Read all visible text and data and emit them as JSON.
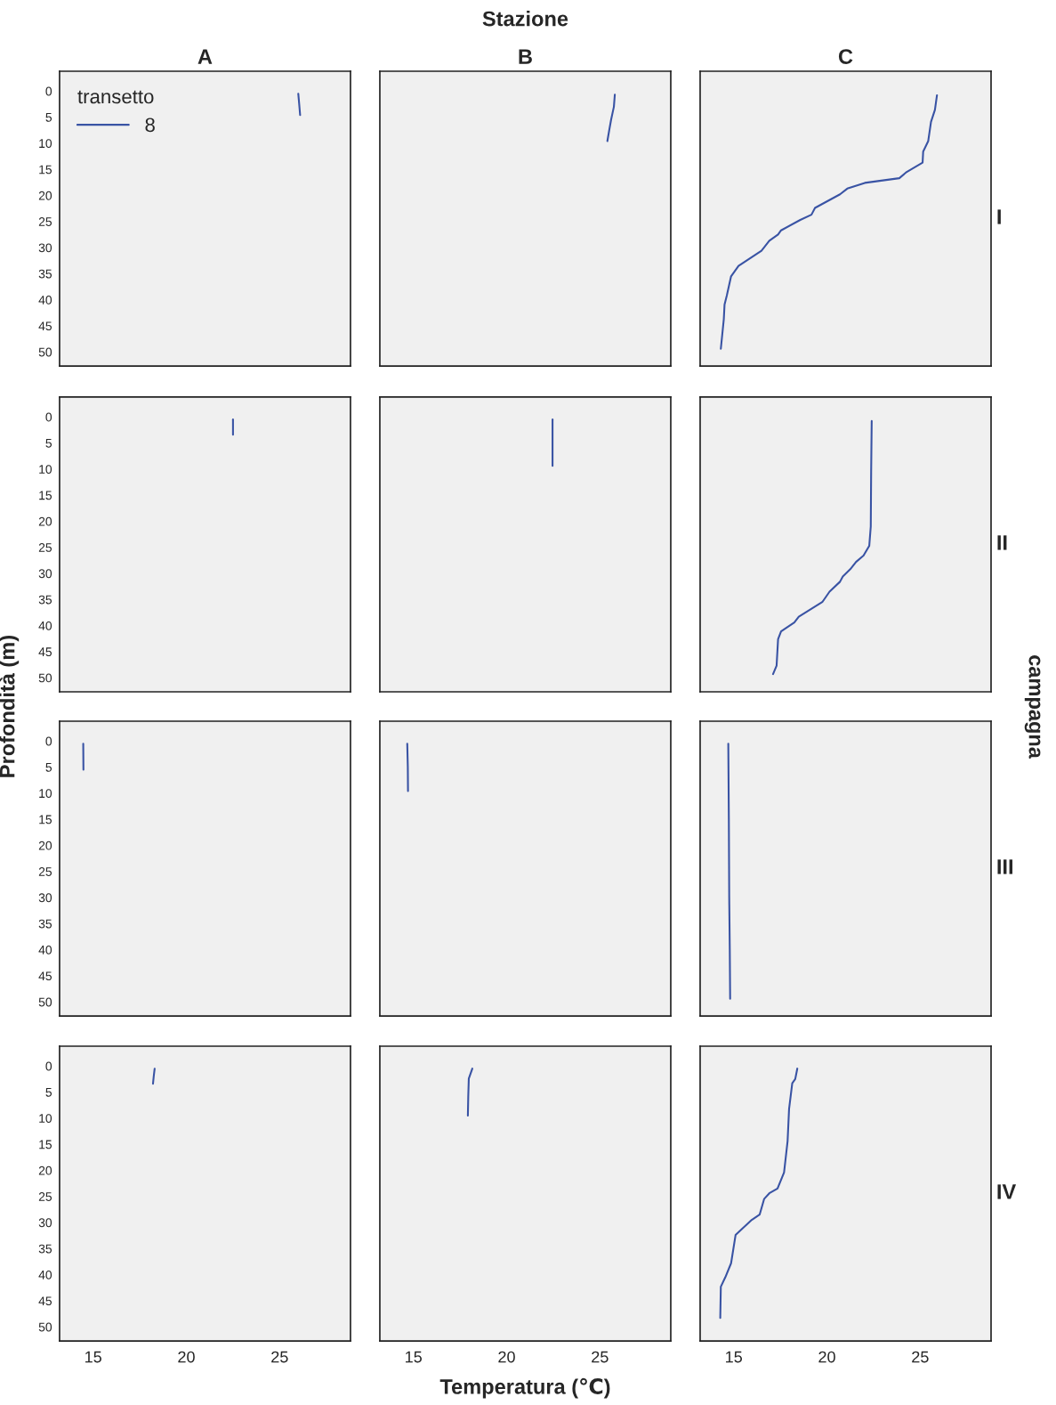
{
  "chart_data": [
    {
      "type": "line",
      "title": "A",
      "xlim": [
        13.2,
        28.8
      ],
      "ylim": [
        52.7,
        -3.8
      ],
      "xticks": [
        15,
        20,
        25
      ],
      "yticks": [
        0,
        5,
        10,
        15,
        20,
        25,
        30,
        35,
        40,
        45,
        50
      ],
      "tick_labels": "y",
      "legend": "top left",
      "legend_title": "transetto",
      "series": [
        {
          "name": "8",
          "color": "#3953a4",
          "x": [
            26.0,
            26.05,
            26.1
          ],
          "values": [
            0.5,
            2.5,
            4.6
          ]
        }
      ]
    },
    {
      "type": "line",
      "title": "B",
      "annotations": [
        "Stazione"
      ],
      "xlim": [
        13.2,
        28.8
      ],
      "ylim": [
        52.7,
        -3.8
      ],
      "xticks": [
        15,
        20,
        25
      ],
      "yticks": [
        0,
        5,
        10,
        15,
        20,
        25,
        30,
        35,
        40,
        45,
        50
      ],
      "tick_labels": false,
      "series": [
        {
          "color": "#3953a4",
          "x": [
            25.8,
            25.75,
            25.6,
            25.5,
            25.4
          ],
          "values": [
            0.7,
            3,
            5.5,
            7.5,
            9.6
          ]
        }
      ]
    },
    {
      "type": "line",
      "title": "C",
      "annotations": [
        "I"
      ],
      "xlim": [
        13.2,
        28.8
      ],
      "ylim": [
        52.7,
        -3.8
      ],
      "xticks": [
        15,
        20,
        25
      ],
      "yticks": [
        0,
        5,
        10,
        15,
        20,
        25,
        30,
        35,
        40,
        45,
        50
      ],
      "tick_labels": false,
      "series": [
        {
          "color": "#3953a4",
          "x": [
            25.9,
            25.79,
            25.58,
            25.43,
            25.16,
            25.13,
            24.24,
            23.88,
            22.03,
            21.09,
            20.7,
            19.36,
            19.17,
            18.57,
            17.54,
            17.38,
            16.91,
            16.49,
            15.26,
            14.86,
            14.63,
            14.51,
            14.47,
            14.31
          ],
          "values": [
            0.8,
            3.6,
            5.9,
            9.6,
            11.6,
            13.7,
            15.6,
            16.7,
            17.6,
            18.7,
            19.8,
            22.4,
            23.7,
            24.7,
            26.7,
            27.5,
            28.7,
            30.6,
            33.5,
            35.5,
            39.2,
            40.9,
            43.7,
            49.4
          ]
        }
      ]
    },
    {
      "type": "line",
      "ylabel": "Profondità (m)",
      "xlim": [
        13.2,
        28.8
      ],
      "ylim": [
        52.7,
        -3.8
      ],
      "xticks": [
        15,
        20,
        25
      ],
      "yticks": [
        0,
        5,
        10,
        15,
        20,
        25,
        30,
        35,
        40,
        45,
        50
      ],
      "tick_labels": "y",
      "series": [
        {
          "color": "#3953a4",
          "x": [
            22.5,
            22.5
          ],
          "values": [
            0.5,
            3.4
          ]
        }
      ]
    },
    {
      "type": "line",
      "xlim": [
        13.2,
        28.8
      ],
      "ylim": [
        52.7,
        -3.8
      ],
      "xticks": [
        15,
        20,
        25
      ],
      "yticks": [
        0,
        5,
        10,
        15,
        20,
        25,
        30,
        35,
        40,
        45,
        50
      ],
      "tick_labels": false,
      "series": [
        {
          "color": "#3953a4",
          "x": [
            22.46,
            22.46,
            22.46
          ],
          "values": [
            0.5,
            5,
            9.4
          ]
        }
      ]
    },
    {
      "type": "line",
      "annotations": [
        "II",
        "campagna"
      ],
      "xlim": [
        13.2,
        28.8
      ],
      "ylim": [
        52.7,
        -3.8
      ],
      "xticks": [
        15,
        20,
        25
      ],
      "yticks": [
        0,
        5,
        10,
        15,
        20,
        25,
        30,
        35,
        40,
        45,
        50
      ],
      "tick_labels": false,
      "series": [
        {
          "color": "#3953a4",
          "x": [
            22.4,
            22.37,
            22.35,
            22.27,
            21.96,
            21.56,
            21.25,
            20.85,
            20.7,
            20.14,
            19.75,
            18.49,
            18.25,
            17.54,
            17.38,
            17.3,
            17.11
          ],
          "values": [
            0.8,
            10.7,
            21.0,
            24.7,
            26.6,
            27.8,
            29.2,
            30.6,
            31.6,
            33.5,
            35.5,
            38.3,
            39.4,
            41.1,
            42.6,
            47.7,
            49.3
          ]
        }
      ]
    },
    {
      "type": "line",
      "xlim": [
        13.2,
        28.8
      ],
      "ylim": [
        52.7,
        -3.8
      ],
      "xticks": [
        15,
        20,
        25
      ],
      "yticks": [
        0,
        5,
        10,
        15,
        20,
        25,
        30,
        35,
        40,
        45,
        50
      ],
      "tick_labels": "y",
      "series": [
        {
          "color": "#3953a4",
          "x": [
            14.47,
            14.48
          ],
          "values": [
            0.5,
            5.5
          ]
        }
      ]
    },
    {
      "type": "line",
      "xlim": [
        13.2,
        28.8
      ],
      "ylim": [
        52.7,
        -3.8
      ],
      "xticks": [
        15,
        20,
        25
      ],
      "yticks": [
        0,
        5,
        10,
        15,
        20,
        25,
        30,
        35,
        40,
        45,
        50
      ],
      "tick_labels": false,
      "series": [
        {
          "color": "#3953a4",
          "x": [
            14.67,
            14.7,
            14.71
          ],
          "values": [
            0.5,
            5,
            9.6
          ]
        }
      ]
    },
    {
      "type": "line",
      "annotations": [
        "III"
      ],
      "xlim": [
        13.2,
        28.8
      ],
      "ylim": [
        52.7,
        -3.8
      ],
      "xticks": [
        15,
        20,
        25
      ],
      "yticks": [
        0,
        5,
        10,
        15,
        20,
        25,
        30,
        35,
        40,
        45,
        50
      ],
      "tick_labels": false,
      "series": [
        {
          "color": "#3953a4",
          "x": [
            14.71,
            14.74,
            14.76,
            14.79,
            14.81
          ],
          "values": [
            0.5,
            15,
            30,
            40,
            49.4
          ]
        }
      ]
    },
    {
      "type": "line",
      "xlim": [
        13.2,
        28.8
      ],
      "ylim": [
        52.7,
        -3.8
      ],
      "xticks": [
        15,
        20,
        25
      ],
      "yticks": [
        0,
        5,
        10,
        15,
        20,
        25,
        30,
        35,
        40,
        45,
        50
      ],
      "series": [
        {
          "color": "#3953a4",
          "x": [
            18.3,
            18.25,
            18.21
          ],
          "values": [
            0.5,
            2,
            3.4
          ]
        }
      ]
    },
    {
      "type": "line",
      "xlabel": "Temperatura (℃)",
      "xlim": [
        13.2,
        28.8
      ],
      "ylim": [
        52.7,
        -3.8
      ],
      "xticks": [
        15,
        20,
        25
      ],
      "yticks": [
        0,
        5,
        10,
        15,
        20,
        25,
        30,
        35,
        40,
        45,
        50
      ],
      "tick_labels": "x",
      "series": [
        {
          "color": "#3953a4",
          "x": [
            18.16,
            17.97,
            17.94,
            17.92
          ],
          "values": [
            0.5,
            2.4,
            6,
            9.5
          ]
        }
      ]
    },
    {
      "type": "line",
      "annotations": [
        "IV"
      ],
      "xlim": [
        13.2,
        28.8
      ],
      "ylim": [
        52.7,
        -3.8
      ],
      "xticks": [
        15,
        20,
        25
      ],
      "yticks": [
        0,
        5,
        10,
        15,
        20,
        25,
        30,
        35,
        40,
        45,
        50
      ],
      "tick_labels": "x",
      "series": [
        {
          "color": "#3953a4",
          "x": [
            18.41,
            18.3,
            18.14,
            17.97,
            17.89,
            17.7,
            17.35,
            16.91,
            16.63,
            16.39,
            15.97,
            15.1,
            14.86,
            14.55,
            14.31,
            14.28
          ],
          "values": [
            0.5,
            2.5,
            3.3,
            8.2,
            14.4,
            20.4,
            23.5,
            24.4,
            25.5,
            28.5,
            29.5,
            32.4,
            37.8,
            40.5,
            42.3,
            48.3
          ]
        }
      ]
    }
  ]
}
